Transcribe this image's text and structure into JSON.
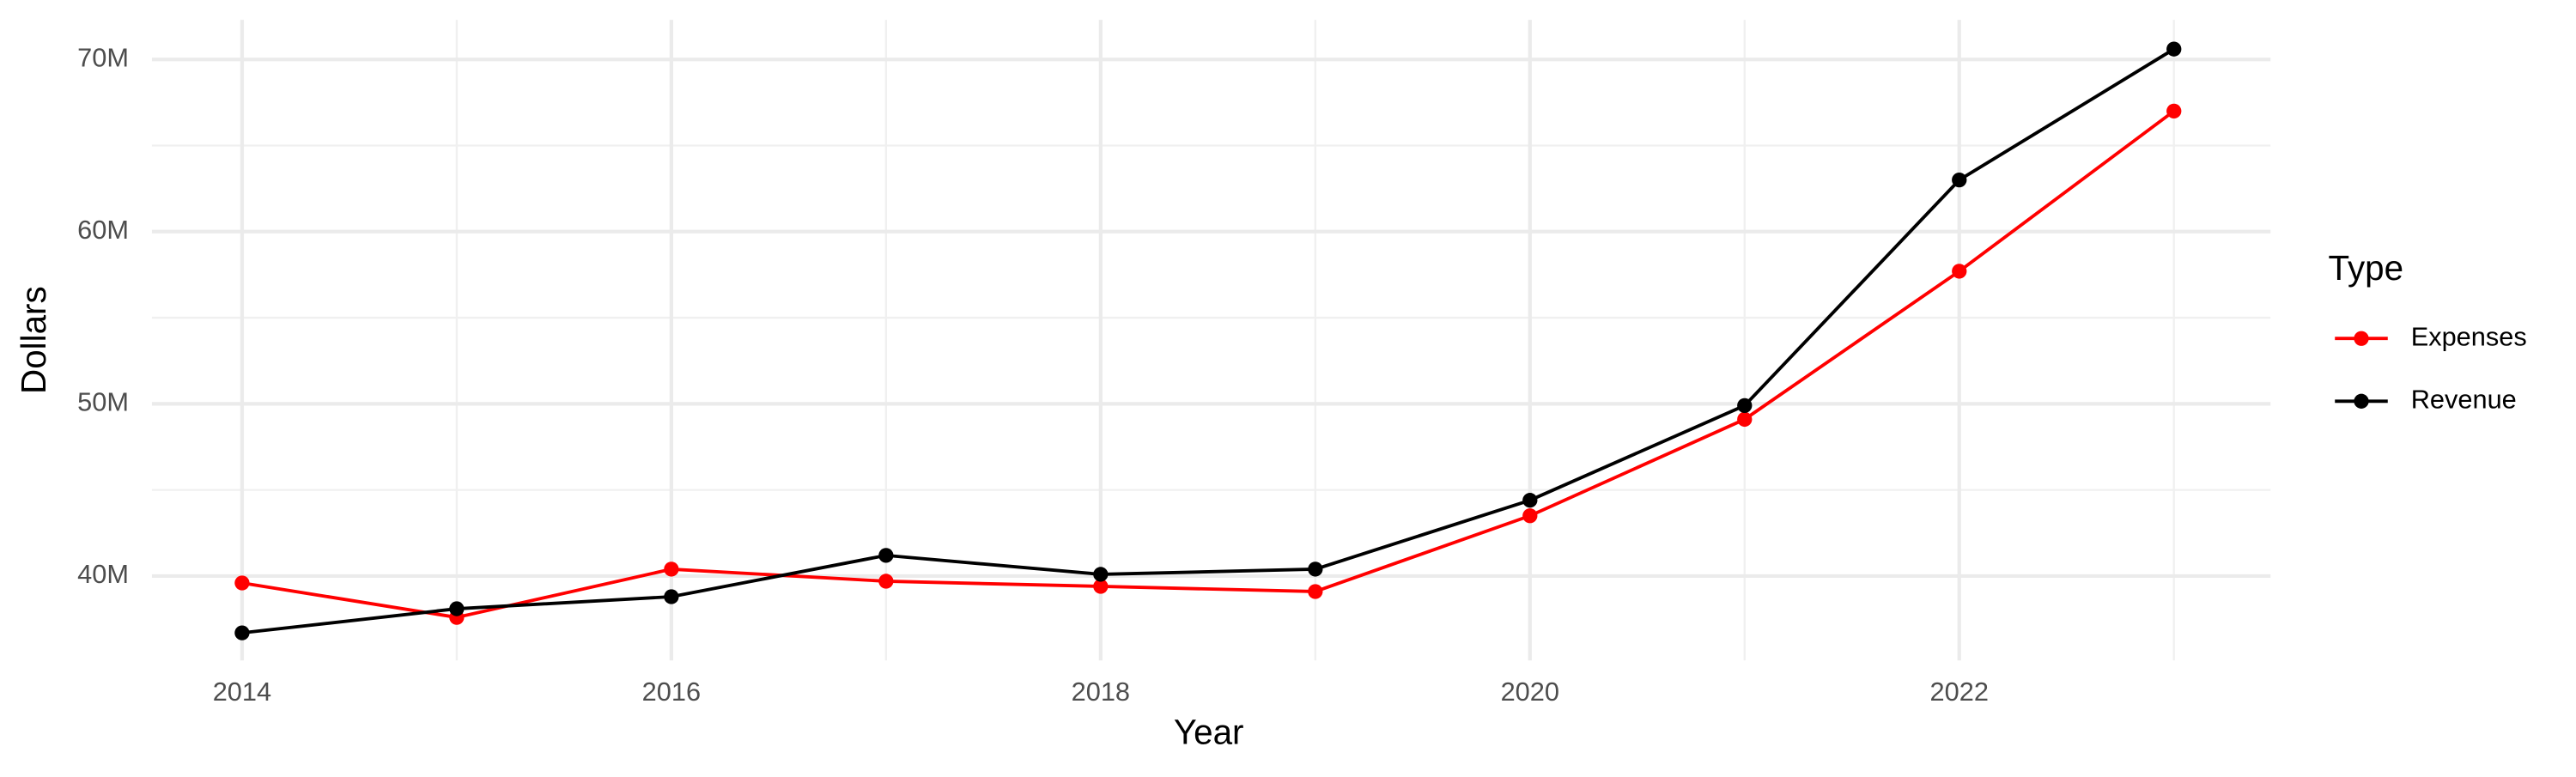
{
  "chart_data": {
    "type": "line",
    "x_label": "Year",
    "y_label": "Dollars",
    "legend_title": "Type",
    "x": [
      2014,
      2015,
      2016,
      2017,
      2018,
      2019,
      2020,
      2021,
      2022,
      2023
    ],
    "series": [
      {
        "name": "Expenses",
        "color": "#ff0000",
        "values": [
          39600000,
          37600000,
          40400000,
          39700000,
          39400000,
          39100000,
          43500000,
          49100000,
          57700000,
          67000000
        ]
      },
      {
        "name": "Revenue",
        "color": "#000000",
        "values": [
          36700000,
          38100000,
          38800000,
          41200000,
          40100000,
          40400000,
          44400000,
          49900000,
          63000000,
          70600000
        ]
      }
    ],
    "xlim": [
      2013.58,
      2023.45
    ],
    "xticks": [
      2014,
      2016,
      2018,
      2020,
      2022
    ],
    "ylim": [
      35100000,
      72300000
    ],
    "yticks": [
      {
        "value": 40000000,
        "label": "40M"
      },
      {
        "value": 50000000,
        "label": "50M"
      },
      {
        "value": 60000000,
        "label": "60M"
      },
      {
        "value": 70000000,
        "label": "70M"
      }
    ],
    "grid": true,
    "legend": "right"
  }
}
